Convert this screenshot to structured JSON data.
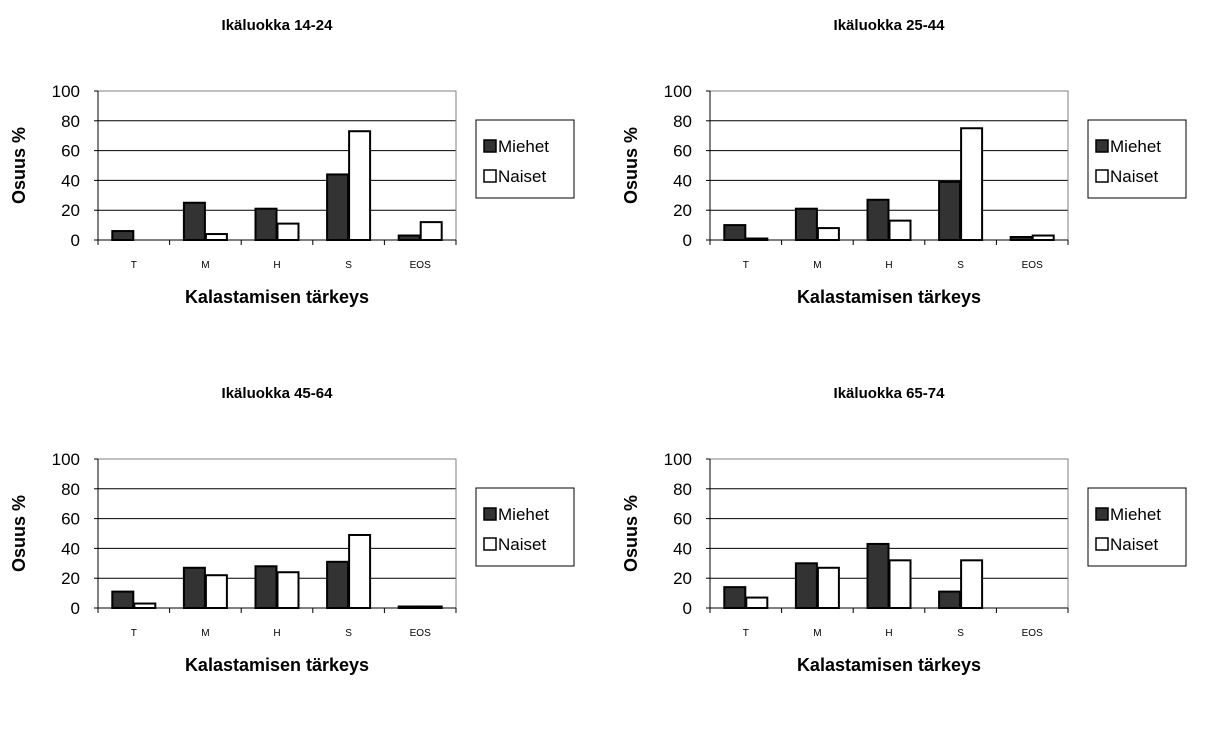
{
  "chart_data": [
    {
      "type": "bar",
      "title": "Ikäluokka 14-24",
      "xlabel": "Kalastamisen tärkeys",
      "ylabel": "Osuus %",
      "categories": [
        "T",
        "M",
        "H",
        "S",
        "EOS"
      ],
      "ylim": [
        0,
        100
      ],
      "yticks": [
        "0",
        "20",
        "40",
        "60",
        "80",
        "100"
      ],
      "grid": true,
      "legend_position": "right",
      "series": [
        {
          "name": "Miehet",
          "color": "#333333",
          "values": [
            6,
            25,
            21,
            44,
            3
          ]
        },
        {
          "name": "Naiset",
          "color": "#ffffff",
          "values": [
            0,
            4,
            11,
            73,
            12
          ]
        }
      ]
    },
    {
      "type": "bar",
      "title": "Ikäluokka 25-44",
      "xlabel": "Kalastamisen tärkeys",
      "ylabel": "Osuus %",
      "categories": [
        "T",
        "M",
        "H",
        "S",
        "EOS"
      ],
      "ylim": [
        0,
        100
      ],
      "yticks": [
        "0",
        "20",
        "40",
        "60",
        "80",
        "100"
      ],
      "grid": true,
      "legend_position": "right",
      "series": [
        {
          "name": "Miehet",
          "color": "#333333",
          "values": [
            10,
            21,
            27,
            39,
            2
          ]
        },
        {
          "name": "Naiset",
          "color": "#ffffff",
          "values": [
            1,
            8,
            13,
            75,
            3
          ]
        }
      ]
    },
    {
      "type": "bar",
      "title": "Ikäluokka 45-64",
      "xlabel": "Kalastamisen tärkeys",
      "ylabel": "Osuus %",
      "categories": [
        "T",
        "M",
        "H",
        "S",
        "EOS"
      ],
      "ylim": [
        0,
        100
      ],
      "yticks": [
        "0",
        "20",
        "40",
        "60",
        "80",
        "100"
      ],
      "grid": true,
      "legend_position": "right",
      "series": [
        {
          "name": "Miehet",
          "color": "#333333",
          "values": [
            11,
            27,
            28,
            31,
            1
          ]
        },
        {
          "name": "Naiset",
          "color": "#ffffff",
          "values": [
            3,
            22,
            24,
            49,
            1
          ]
        }
      ]
    },
    {
      "type": "bar",
      "title": "Ikäluokka 65-74",
      "xlabel": "Kalastamisen tärkeys",
      "ylabel": "Osuus %",
      "categories": [
        "T",
        "M",
        "H",
        "S",
        "EOS"
      ],
      "ylim": [
        0,
        100
      ],
      "yticks": [
        "0",
        "20",
        "40",
        "60",
        "80",
        "100"
      ],
      "grid": true,
      "legend_position": "right",
      "series": [
        {
          "name": "Miehet",
          "color": "#333333",
          "values": [
            14,
            30,
            43,
            11,
            0
          ]
        },
        {
          "name": "Naiset",
          "color": "#ffffff",
          "values": [
            7,
            27,
            32,
            32,
            0
          ]
        }
      ]
    }
  ]
}
